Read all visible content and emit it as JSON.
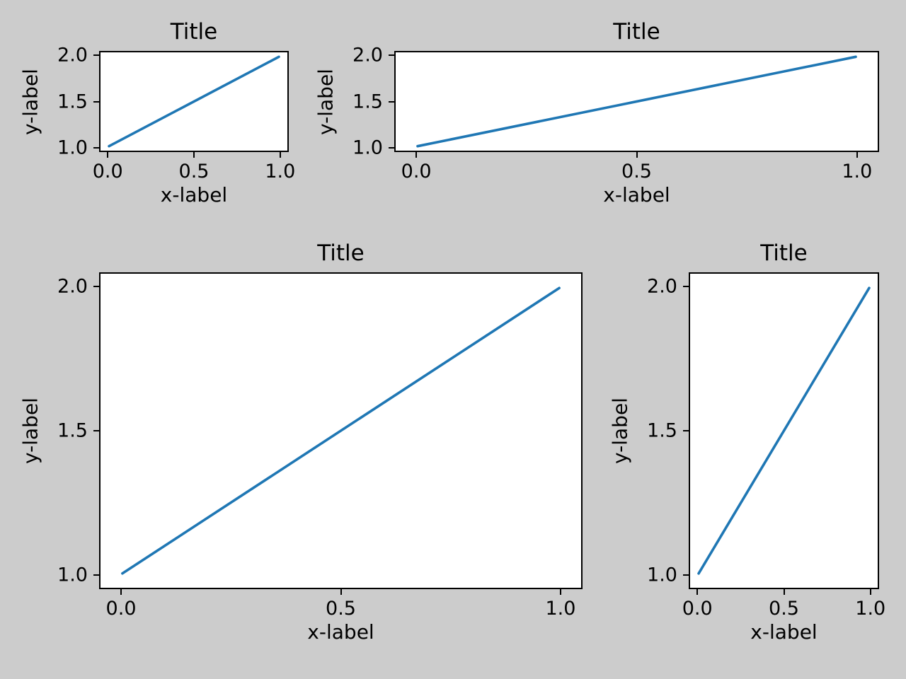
{
  "figure": {
    "background_color": "#cccccc",
    "axes_background_color": "#ffffff",
    "spine_color": "#000000",
    "text_color": "#000000",
    "accent_line_color": "#1f77b4"
  },
  "chart_data": [
    {
      "type": "line",
      "position": "top-left",
      "title": "Title",
      "xlabel": "x-label",
      "ylabel": "y-label",
      "x": [
        0.0,
        1.0
      ],
      "y": [
        1.0,
        2.0
      ],
      "xlim": [
        -0.05,
        1.05
      ],
      "ylim": [
        0.95,
        2.05
      ],
      "xticks": [
        0.0,
        0.5,
        1.0
      ],
      "yticks": [
        1.0,
        1.5,
        2.0
      ],
      "xtick_labels": [
        "0.0",
        "0.5",
        "1.0"
      ],
      "ytick_labels": [
        "1.0",
        "1.5",
        "2.0"
      ],
      "line_color": "#1f77b4",
      "grid": false,
      "legend": null
    },
    {
      "type": "line",
      "position": "top-right",
      "title": "Title",
      "xlabel": "x-label",
      "ylabel": "y-label",
      "x": [
        0.0,
        1.0
      ],
      "y": [
        1.0,
        2.0
      ],
      "xlim": [
        -0.05,
        1.05
      ],
      "ylim": [
        0.95,
        2.05
      ],
      "xticks": [
        0.0,
        0.5,
        1.0
      ],
      "yticks": [
        1.0,
        1.5,
        2.0
      ],
      "xtick_labels": [
        "0.0",
        "0.5",
        "1.0"
      ],
      "ytick_labels": [
        "1.0",
        "1.5",
        "2.0"
      ],
      "line_color": "#1f77b4",
      "grid": false,
      "legend": null
    },
    {
      "type": "line",
      "position": "bottom-left",
      "title": "Title",
      "xlabel": "x-label",
      "ylabel": "y-label",
      "x": [
        0.0,
        1.0
      ],
      "y": [
        1.0,
        2.0
      ],
      "xlim": [
        -0.05,
        1.05
      ],
      "ylim": [
        0.95,
        2.05
      ],
      "xticks": [
        0.0,
        0.5,
        1.0
      ],
      "yticks": [
        1.0,
        1.5,
        2.0
      ],
      "xtick_labels": [
        "0.0",
        "0.5",
        "1.0"
      ],
      "ytick_labels": [
        "1.0",
        "1.5",
        "2.0"
      ],
      "line_color": "#1f77b4",
      "grid": false,
      "legend": null
    },
    {
      "type": "line",
      "position": "bottom-right",
      "title": "Title",
      "xlabel": "x-label",
      "ylabel": "y-label",
      "x": [
        0.0,
        1.0
      ],
      "y": [
        1.0,
        2.0
      ],
      "xlim": [
        -0.05,
        1.05
      ],
      "ylim": [
        0.95,
        2.05
      ],
      "xticks": [
        0.0,
        0.5,
        1.0
      ],
      "yticks": [
        1.0,
        1.5,
        2.0
      ],
      "xtick_labels": [
        "0.0",
        "0.5",
        "1.0"
      ],
      "ytick_labels": [
        "1.0",
        "1.5",
        "2.0"
      ],
      "line_color": "#1f77b4",
      "grid": false,
      "legend": null
    }
  ]
}
